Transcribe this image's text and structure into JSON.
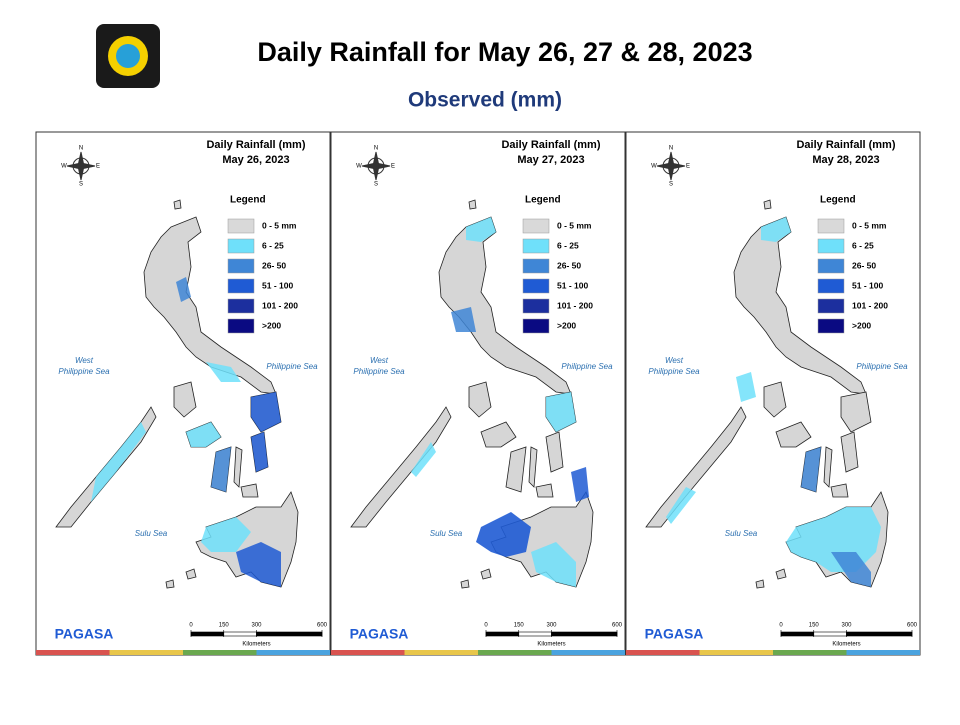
{
  "header": {
    "title": "Daily Rainfall for May 26, 27 & 28, 2023",
    "subtitle": "Observed (mm)"
  },
  "compass": {
    "north": "N",
    "east": "E",
    "west": "W",
    "south": "S"
  },
  "legend": {
    "title": "Legend",
    "items": [
      {
        "label": "0 - 5 mm",
        "color": "#d9d9d9"
      },
      {
        "label": "6 - 25",
        "color": "#6fe0fa"
      },
      {
        "label": "26- 50",
        "color": "#3f86d6"
      },
      {
        "label": "51 - 100",
        "color": "#1f5bd4"
      },
      {
        "label": "101 - 200",
        "color": "#1c2f9e"
      },
      {
        "label": ">200",
        "color": "#0a0a82"
      }
    ]
  },
  "seas": {
    "west": [
      "West",
      "Philippine Sea"
    ],
    "east": "Philippine Sea",
    "south": "Sulu Sea"
  },
  "scale": {
    "ticks": [
      0,
      150,
      300,
      600
    ],
    "unit": "Kilometers"
  },
  "logo": "PAGASA",
  "panels": [
    {
      "title": "Daily Rainfall (mm)",
      "date": "May 26, 2023"
    },
    {
      "title": "Daily Rainfall (mm)",
      "date": "May 27, 2023"
    },
    {
      "title": "Daily Rainfall (mm)",
      "date": "May 28, 2023"
    }
  ]
}
